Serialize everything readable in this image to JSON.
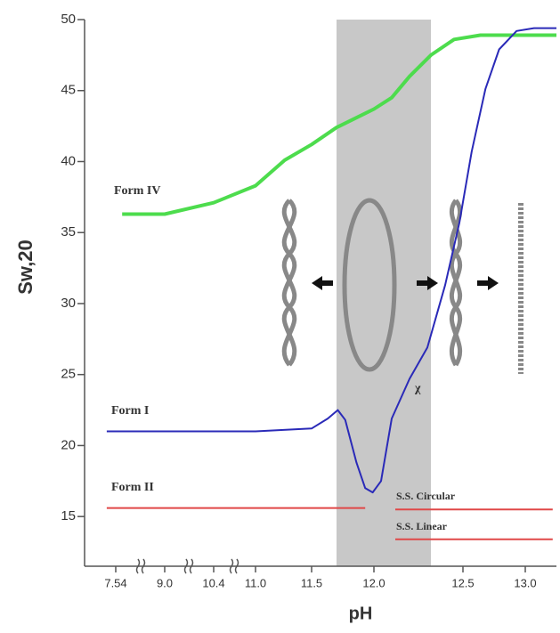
{
  "chart_data": {
    "type": "line",
    "xlabel": "pH",
    "ylabel": "Sw,20",
    "xlim": [
      6.6,
      13.25
    ],
    "xticks": [
      7.54,
      {
        "value": 9,
        "label": "9.0"
      },
      10.4,
      {
        "value": 11,
        "label": "11.0"
      },
      11.5,
      {
        "value": 12,
        "label": "12.0"
      },
      12.5,
      {
        "value": 13,
        "label": "13.0"
      }
    ],
    "ylim": [
      11.5,
      50
    ],
    "yticks": [
      15,
      20,
      25,
      30,
      35,
      40,
      45,
      50
    ],
    "shaded_region": {
      "x": [
        11.7,
        12.32
      ],
      "color": "#c8c8c8"
    },
    "series": [
      {
        "name": "Form IV",
        "color": "#4ddc4d",
        "x": [
          7.73,
          9.0,
          10.4,
          11.0,
          11.26,
          11.5,
          11.7,
          12.0,
          12.1,
          12.2,
          12.32,
          12.45,
          12.64,
          13.25
        ],
        "values": [
          36.3,
          36.3,
          37.1,
          38.3,
          40.1,
          41.2,
          42.4,
          43.7,
          44.5,
          46.0,
          47.5,
          48.6,
          48.9,
          48.9
        ]
      },
      {
        "name": "Form I",
        "color": "#2a2ab8",
        "x": [
          7.27,
          9.0,
          11.0,
          11.5,
          11.63,
          11.71,
          11.77,
          11.86,
          11.93,
          11.99,
          12.04,
          12.1,
          12.2,
          12.3,
          12.4,
          12.48,
          12.57,
          12.68,
          12.79,
          12.93,
          13.07,
          13.25
        ],
        "values": [
          21.0,
          21.0,
          21.0,
          21.2,
          21.9,
          22.5,
          21.8,
          18.8,
          17.0,
          16.7,
          17.5,
          21.9,
          24.7,
          26.9,
          31.3,
          35.7,
          40.7,
          45.1,
          47.9,
          49.2,
          49.4,
          49.4
        ]
      },
      {
        "name": "Form II",
        "color": "#e04848",
        "x": [
          7.27,
          11.93
        ],
        "values": [
          15.6,
          15.6
        ]
      },
      {
        "name": "S.S. Circular",
        "color": "#e04848",
        "x": [
          12.12,
          13.22
        ],
        "values": [
          15.5,
          15.5
        ]
      },
      {
        "name": "S.S. Linear",
        "color": "#e04848",
        "x": [
          12.12,
          13.22
        ],
        "values": [
          13.4,
          13.4
        ]
      }
    ],
    "annotations": [
      "χ"
    ]
  }
}
